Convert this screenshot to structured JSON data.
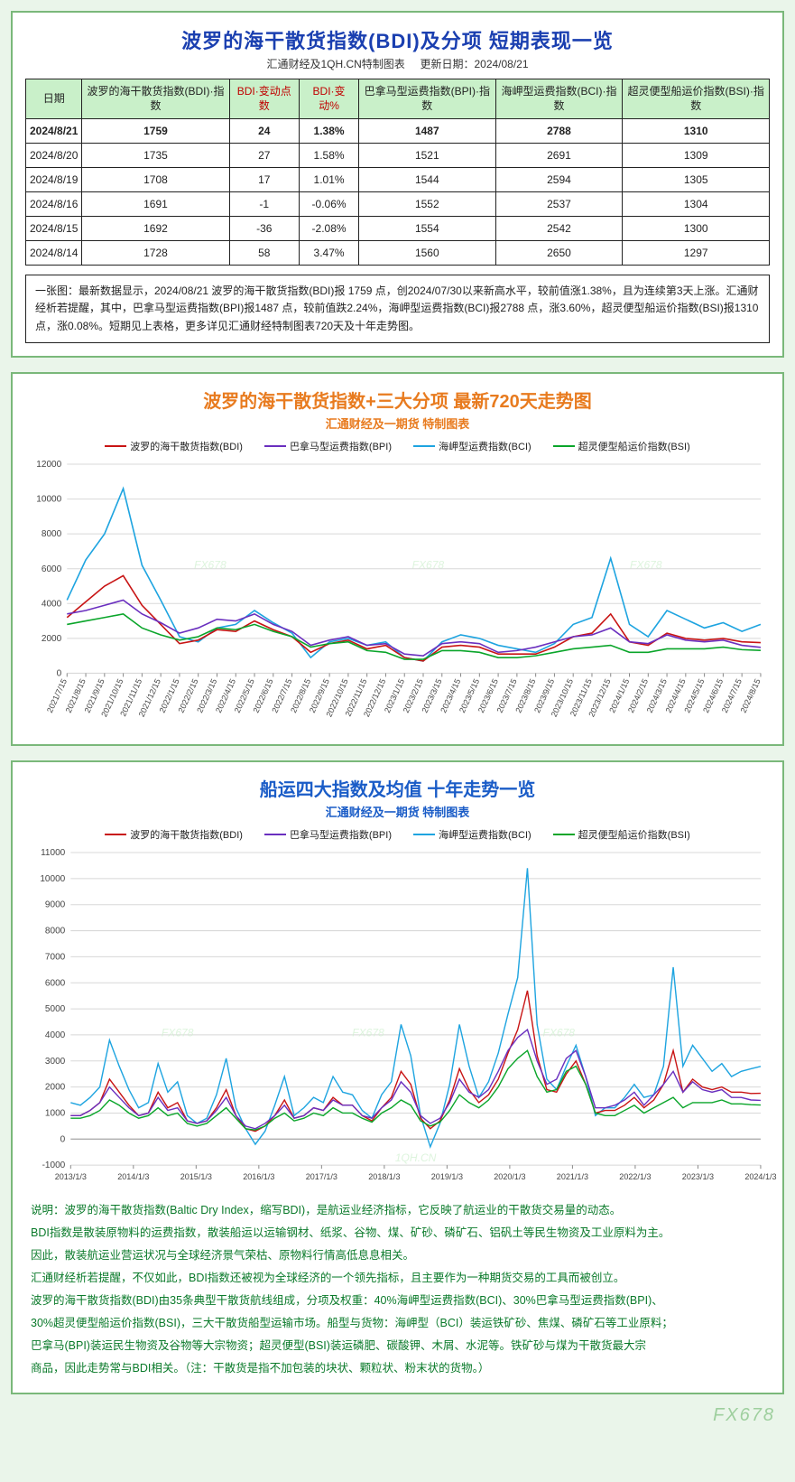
{
  "page": {
    "background": "#eaf5ea",
    "panel_border": "#7ab87a",
    "footer_watermark": "FX678"
  },
  "table_panel": {
    "title": "波罗的海干散货指数(BDI)及分项 短期表现一览",
    "subtitle_left": "汇通财经及1QH.CN特制图表",
    "subtitle_right": "更新日期：2024/08/21",
    "title_color": "#1a3fb0",
    "header_bg": "#c9f0c9",
    "columns": [
      "日期",
      "波罗的海干散货指数(BDI)·指数",
      "BDI·变动点数",
      "BDI·变动%",
      "巴拿马型运费指数(BPI)·指数",
      "海岬型运费指数(BCI)·指数",
      "超灵便型船运价指数(BSI)·指数"
    ],
    "red_header_indices": [
      2,
      3
    ],
    "rows": [
      {
        "bold": true,
        "cells": [
          "2024/8/21",
          "1759",
          "24",
          "1.38%",
          "1487",
          "2788",
          "1310"
        ]
      },
      {
        "bold": false,
        "cells": [
          "2024/8/20",
          "1735",
          "27",
          "1.58%",
          "1521",
          "2691",
          "1309"
        ]
      },
      {
        "bold": false,
        "cells": [
          "2024/8/19",
          "1708",
          "17",
          "1.01%",
          "1544",
          "2594",
          "1305"
        ]
      },
      {
        "bold": false,
        "cells": [
          "2024/8/16",
          "1691",
          "-1",
          "-0.06%",
          "1552",
          "2537",
          "1304"
        ]
      },
      {
        "bold": false,
        "cells": [
          "2024/8/15",
          "1692",
          "-36",
          "-2.08%",
          "1554",
          "2542",
          "1300"
        ]
      },
      {
        "bold": false,
        "cells": [
          "2024/8/14",
          "1728",
          "58",
          "3.47%",
          "1560",
          "2650",
          "1297"
        ]
      }
    ],
    "description": "一张图：最新数据显示，2024/08/21 波罗的海干散货指数(BDI)报 1759 点，创2024/07/30以来新高水平，较前值涨1.38%，且为连续第3天上涨。汇通财经析若提醒，其中，巴拿马型运费指数(BPI)报1487 点，较前值跌2.24%，海岬型运费指数(BCI)报2788 点，涨3.60%，超灵便型船运价指数(BSI)报1310 点，涨0.08%。短期见上表格，更多详见汇通财经特制图表720天及十年走势图。"
  },
  "chart720": {
    "title": "波罗的海干散货指数+三大分项 最新720天走势图",
    "subtitle": "汇通财经及一期货 特制图表",
    "title_color": "#e87b1f",
    "subtitle_color": "#e87b1f",
    "background": "#ffffff",
    "grid_color": "#d8d8d8",
    "ylim": [
      0,
      12000
    ],
    "ytick_step": 2000,
    "x_labels": [
      "2021/7/15",
      "2021/8/15",
      "2021/9/15",
      "2021/10/15",
      "2021/11/15",
      "2021/12/15",
      "2022/1/15",
      "2022/2/15",
      "2022/3/15",
      "2022/4/15",
      "2022/5/15",
      "2022/6/15",
      "2022/7/15",
      "2022/8/15",
      "2022/9/15",
      "2022/10/15",
      "2022/11/15",
      "2022/12/15",
      "2023/1/15",
      "2023/2/15",
      "2023/3/15",
      "2023/4/15",
      "2023/5/15",
      "2023/6/15",
      "2023/7/15",
      "2023/8/15",
      "2023/9/15",
      "2023/10/15",
      "2023/11/15",
      "2023/12/15",
      "2024/1/15",
      "2024/2/15",
      "2024/3/15",
      "2024/4/15",
      "2024/5/15",
      "2024/6/15",
      "2024/7/15",
      "2024/8/15"
    ],
    "legend": [
      {
        "label": "波罗的海干散货指数(BDI)",
        "color": "#c81414"
      },
      {
        "label": "巴拿马型运费指数(BPI)",
        "color": "#6a2fbf"
      },
      {
        "label": "海岬型运费指数(BCI)",
        "color": "#1ea4e0"
      },
      {
        "label": "超灵便型船运价指数(BSI)",
        "color": "#0aa52a"
      }
    ],
    "series": {
      "bci": [
        4200,
        6500,
        8000,
        10600,
        6200,
        4200,
        2100,
        1800,
        2600,
        2800,
        3600,
        2900,
        2300,
        900,
        1800,
        2000,
        1600,
        1800,
        900,
        700,
        1800,
        2200,
        2000,
        1600,
        1400,
        1200,
        1700,
        2800,
        3200,
        6600,
        2800,
        2100,
        3600,
        3100,
        2600,
        2900,
        2400,
        2800
      ],
      "bdi": [
        3200,
        4100,
        5000,
        5600,
        3900,
        2800,
        1700,
        1900,
        2500,
        2400,
        3000,
        2500,
        2100,
        1200,
        1700,
        1900,
        1400,
        1600,
        900,
        700,
        1500,
        1600,
        1500,
        1100,
        1100,
        1100,
        1500,
        2100,
        2300,
        3400,
        1800,
        1600,
        2300,
        2000,
        1900,
        2000,
        1800,
        1759
      ],
      "bpi": [
        3400,
        3600,
        3900,
        4200,
        3400,
        2900,
        2300,
        2600,
        3100,
        3000,
        3400,
        2800,
        2400,
        1600,
        1900,
        2100,
        1600,
        1700,
        1100,
        1000,
        1700,
        1800,
        1700,
        1200,
        1300,
        1500,
        1800,
        2100,
        2200,
        2600,
        1800,
        1700,
        2200,
        1900,
        1800,
        1900,
        1600,
        1487
      ],
      "bsi": [
        2800,
        3000,
        3200,
        3400,
        2600,
        2200,
        1900,
        2100,
        2600,
        2500,
        2800,
        2400,
        2100,
        1500,
        1700,
        1800,
        1300,
        1200,
        800,
        800,
        1300,
        1300,
        1200,
        900,
        900,
        1000,
        1200,
        1400,
        1500,
        1600,
        1200,
        1200,
        1400,
        1400,
        1400,
        1500,
        1350,
        1310
      ]
    },
    "line_width": 1.6,
    "watermark": "FX678"
  },
  "chart10y": {
    "title": "船运四大指数及均值 十年走势一览",
    "subtitle": "汇通财经及一期货 特制图表",
    "title_color": "#1a5cc7",
    "subtitle_color": "#1a5cc7",
    "background": "#ffffff",
    "grid_color": "#d8d8d8",
    "ylim": [
      -1000,
      11000
    ],
    "yticks": [
      -1000,
      0,
      1000,
      2000,
      3000,
      4000,
      5000,
      6000,
      7000,
      8000,
      9000,
      10000,
      11000
    ],
    "x_labels": [
      "2013/1/3",
      "2014/1/3",
      "2015/1/3",
      "2016/1/3",
      "2017/1/3",
      "2018/1/3",
      "2019/1/3",
      "2020/1/3",
      "2021/1/3",
      "2022/1/3",
      "2023/1/3",
      "2024/1/3"
    ],
    "legend": [
      {
        "label": "波罗的海干散货指数(BDI)",
        "color": "#c81414"
      },
      {
        "label": "巴拿马型运费指数(BPI)",
        "color": "#6a2fbf"
      },
      {
        "label": "海岬型运费指数(BCI)",
        "color": "#1ea4e0"
      },
      {
        "label": "超灵便型船运价指数(BSI)",
        "color": "#0aa52a"
      }
    ],
    "n_points": 72,
    "series": {
      "bci": [
        1400,
        1300,
        1600,
        2000,
        3800,
        2800,
        1900,
        1200,
        1400,
        2900,
        1800,
        2200,
        900,
        600,
        800,
        1700,
        3100,
        1200,
        400,
        -200,
        300,
        1300,
        2400,
        900,
        1200,
        1600,
        1400,
        2400,
        1800,
        1700,
        1100,
        800,
        1700,
        2200,
        4400,
        3200,
        900,
        -300,
        600,
        2100,
        4400,
        2800,
        1600,
        2200,
        3300,
        4800,
        6200,
        10400,
        4400,
        2300,
        1900,
        2800,
        3600,
        2400,
        900,
        1200,
        1200,
        1600,
        2100,
        1600,
        1700,
        2800,
        6600,
        2800,
        3600,
        3100,
        2600,
        2900,
        2400,
        2600,
        2700,
        2788
      ],
      "bdi": [
        900,
        900,
        1100,
        1400,
        2300,
        1800,
        1300,
        900,
        1000,
        1800,
        1200,
        1400,
        700,
        600,
        700,
        1200,
        1900,
        900,
        400,
        300,
        500,
        900,
        1500,
        800,
        900,
        1200,
        1100,
        1600,
        1300,
        1300,
        900,
        700,
        1200,
        1600,
        2600,
        2100,
        800,
        400,
        700,
        1500,
        2700,
        1900,
        1400,
        1700,
        2300,
        3300,
        4200,
        5700,
        3200,
        1900,
        1800,
        2500,
        3000,
        2100,
        1000,
        1100,
        1100,
        1300,
        1600,
        1200,
        1500,
        2100,
        3400,
        1800,
        2300,
        2000,
        1900,
        2000,
        1800,
        1800,
        1750,
        1759
      ],
      "bpi": [
        900,
        900,
        1100,
        1400,
        2000,
        1600,
        1200,
        900,
        1000,
        1600,
        1100,
        1200,
        700,
        600,
        700,
        1100,
        1600,
        900,
        500,
        400,
        600,
        900,
        1300,
        800,
        900,
        1200,
        1100,
        1500,
        1300,
        1300,
        900,
        800,
        1200,
        1500,
        2200,
        1800,
        900,
        600,
        800,
        1400,
        2300,
        1800,
        1600,
        1900,
        2600,
        3400,
        3900,
        4200,
        3000,
        2100,
        2300,
        3100,
        3400,
        2400,
        1200,
        1200,
        1300,
        1500,
        1800,
        1300,
        1700,
        2100,
        2600,
        1800,
        2200,
        1900,
        1800,
        1900,
        1600,
        1600,
        1500,
        1487
      ],
      "bsi": [
        800,
        800,
        900,
        1100,
        1500,
        1300,
        1000,
        800,
        900,
        1200,
        900,
        1000,
        600,
        500,
        600,
        900,
        1200,
        800,
        400,
        350,
        500,
        800,
        1000,
        700,
        800,
        1000,
        900,
        1200,
        1000,
        1000,
        800,
        650,
        1000,
        1200,
        1500,
        1300,
        700,
        500,
        650,
        1100,
        1700,
        1400,
        1200,
        1500,
        2000,
        2700,
        3100,
        3400,
        2400,
        1800,
        1900,
        2600,
        2800,
        2100,
        1000,
        900,
        900,
        1100,
        1300,
        1000,
        1200,
        1400,
        1600,
        1200,
        1400,
        1400,
        1400,
        1500,
        1350,
        1350,
        1320,
        1310
      ]
    },
    "line_width": 1.4,
    "watermark": "FX678",
    "watermark2": "1QH.CN"
  },
  "explain": {
    "color": "#0a7a2a",
    "lines": [
      "说明：波罗的海干散货指数(Baltic Dry Index，缩写BDI)，是航运业经济指标，它反映了航运业的干散货交易量的动态。",
      "BDI指数是散装原物料的运费指数，散装船运以运输钢材、纸浆、谷物、煤、矿砂、磷矿石、铝矾土等民生物资及工业原料为主。",
      "因此，散装航运业营运状况与全球经济景气荣枯、原物料行情高低息息相关。",
      "汇通财经析若提醒，不仅如此，BDI指数还被视为全球经济的一个领先指标，且主要作为一种期货交易的工具而被创立。",
      "波罗的海干散货指数(BDI)由35条典型干散货航线组成，分项及权重：40%海岬型运费指数(BCI)、30%巴拿马型运费指数(BPI)、",
      "30%超灵便型船运价指数(BSI)，三大干散货船型运输市场。船型与货物：海岬型（BCI）装运铁矿砂、焦煤、磷矿石等工业原料；",
      "巴拿马(BPI)装运民生物资及谷物等大宗物资；超灵便型(BSI)装运磷肥、碳酸钾、木屑、水泥等。铁矿砂与煤为干散货最大宗",
      "商品，因此走势常与BDI相关。（注：干散货是指不加包装的块状、颗粒状、粉末状的货物。）"
    ]
  }
}
